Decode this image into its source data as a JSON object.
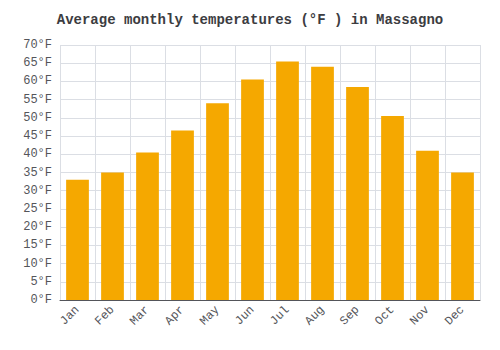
{
  "chart_data": {
    "type": "bar",
    "title": "Average monthly temperatures (°F ) in Massagno",
    "categories": [
      "Jan",
      "Feb",
      "Mar",
      "Apr",
      "May",
      "Jun",
      "Jul",
      "Aug",
      "Sep",
      "Oct",
      "Nov",
      "Dec"
    ],
    "values": [
      33,
      35,
      40.5,
      46.5,
      54,
      60.5,
      65.5,
      64,
      58.5,
      50.5,
      41,
      35
    ],
    "color": "#F5A800",
    "ylim": [
      0,
      70
    ],
    "yticks": [
      {
        "value": 0,
        "label": "0°F"
      },
      {
        "value": 5,
        "label": "5°F"
      },
      {
        "value": 10,
        "label": "10°F"
      },
      {
        "value": 15,
        "label": "15°F"
      },
      {
        "value": 20,
        "label": "20°F"
      },
      {
        "value": 25,
        "label": "25°F"
      },
      {
        "value": 30,
        "label": "30°F"
      },
      {
        "value": 35,
        "label": "35°F"
      },
      {
        "value": 40,
        "label": "40°F"
      },
      {
        "value": 45,
        "label": "45°F"
      },
      {
        "value": 50,
        "label": "50°F"
      },
      {
        "value": 55,
        "label": "55°F"
      },
      {
        "value": 60,
        "label": "60°F"
      },
      {
        "value": 65,
        "label": "65°F"
      },
      {
        "value": 70,
        "label": "70°F"
      }
    ],
    "grid": true
  }
}
